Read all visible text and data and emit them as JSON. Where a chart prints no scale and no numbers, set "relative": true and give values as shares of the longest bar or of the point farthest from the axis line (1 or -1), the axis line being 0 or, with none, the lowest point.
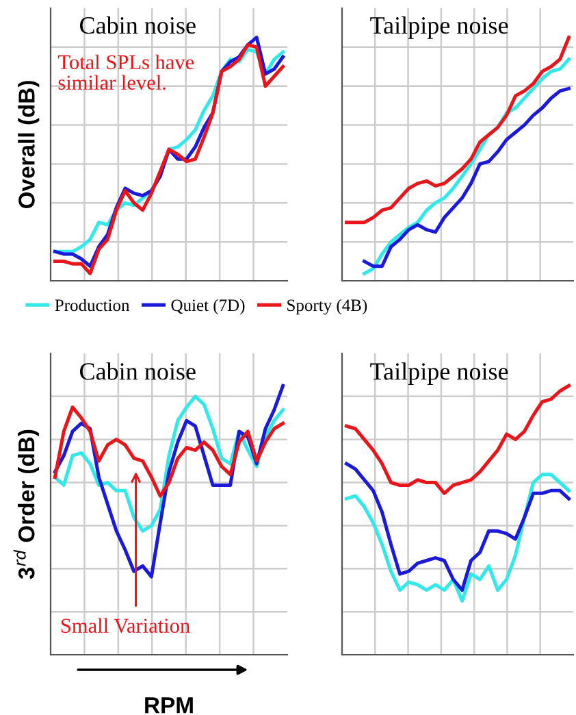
{
  "chart_data": [
    {
      "type": "line",
      "relative": true,
      "title": "Cabin noise",
      "ylabel": "Overall (dB)",
      "grid": true,
      "tick_labels": false,
      "legend": "bottom",
      "annotations": [
        "Total SPLs have\nsimilar level."
      ],
      "categories": [
        null,
        null,
        null,
        null,
        null,
        null,
        null,
        null,
        null,
        null,
        null,
        null,
        null,
        null,
        null,
        null,
        null,
        null,
        null,
        null,
        null,
        null,
        null,
        null,
        null,
        null,
        null
      ],
      "series": [
        {
          "name": "Production",
          "color": "#33e8e8",
          "values": [
            0.12,
            0.12,
            0.12,
            0.14,
            0.17,
            0.24,
            0.23,
            0.29,
            0.32,
            0.31,
            0.34,
            0.37,
            0.43,
            0.54,
            0.55,
            0.58,
            0.62,
            0.7,
            0.76,
            0.86,
            0.91,
            0.9,
            0.95,
            0.94,
            0.85,
            0.91,
            0.94
          ]
        },
        {
          "name": "Quiet (7D)",
          "color": "#1a1ad8",
          "values": [
            0.12,
            0.11,
            0.11,
            0.09,
            0.06,
            0.14,
            0.19,
            0.3,
            0.38,
            0.36,
            0.35,
            0.37,
            0.43,
            0.54,
            0.5,
            0.5,
            0.55,
            0.63,
            0.69,
            0.86,
            0.9,
            0.92,
            0.97,
            1.0,
            0.85,
            0.87,
            0.92
          ]
        },
        {
          "name": "Sporty (4B)",
          "color": "#e8161b",
          "values": [
            0.08,
            0.08,
            0.07,
            0.07,
            0.03,
            0.13,
            0.17,
            0.29,
            0.37,
            0.32,
            0.29,
            0.36,
            0.45,
            0.54,
            0.52,
            0.49,
            0.5,
            0.59,
            0.69,
            0.86,
            0.88,
            0.91,
            0.97,
            0.96,
            0.8,
            0.84,
            0.88
          ]
        }
      ]
    },
    {
      "type": "line",
      "relative": true,
      "title": "Tailpipe noise",
      "grid": true,
      "tick_labels": false,
      "categories": [
        null,
        null,
        null,
        null,
        null,
        null,
        null,
        null,
        null,
        null,
        null,
        null,
        null,
        null,
        null,
        null,
        null,
        null,
        null,
        null,
        null,
        null,
        null,
        null,
        null,
        null
      ],
      "series": [
        {
          "color": "#33e8e8",
          "values": [
            null,
            null,
            0.03,
            0.05,
            0.11,
            0.16,
            0.19,
            0.22,
            0.24,
            0.29,
            0.32,
            0.34,
            0.38,
            0.43,
            0.48,
            0.54,
            0.6,
            0.63,
            0.69,
            0.71,
            0.75,
            0.79,
            0.83,
            0.86,
            0.87,
            0.91
          ]
        },
        {
          "color": "#1a1ad8",
          "values": [
            null,
            null,
            0.08,
            0.06,
            0.06,
            0.14,
            0.17,
            0.21,
            0.23,
            0.21,
            0.2,
            0.26,
            0.3,
            0.34,
            0.4,
            0.48,
            0.49,
            0.53,
            0.58,
            0.61,
            0.64,
            0.68,
            0.71,
            0.75,
            0.78,
            0.79
          ]
        },
        {
          "color": "#e8161b",
          "values": [
            0.24,
            0.24,
            0.24,
            0.26,
            0.29,
            0.3,
            0.34,
            0.38,
            0.4,
            0.41,
            0.39,
            0.4,
            0.43,
            0.46,
            0.5,
            0.57,
            0.6,
            0.63,
            0.68,
            0.76,
            0.78,
            0.81,
            0.86,
            0.88,
            0.91,
            1.0
          ]
        }
      ]
    },
    {
      "type": "line",
      "relative": true,
      "title": "Cabin noise",
      "ylabel": "3$^{rd}$ Order (dB)",
      "xlabel": "RPM",
      "grid": true,
      "tick_labels": false,
      "annotations": [
        "Small Variation"
      ],
      "categories": [
        null,
        null,
        null,
        null,
        null,
        null,
        null,
        null,
        null,
        null,
        null,
        null,
        null,
        null,
        null,
        null,
        null,
        null,
        null,
        null,
        null,
        null,
        null,
        null,
        null,
        null,
        null
      ],
      "series": [
        {
          "color": "#33e8e8",
          "values": [
            0.66,
            0.63,
            0.74,
            0.75,
            0.71,
            0.63,
            0.64,
            0.61,
            0.61,
            0.51,
            0.46,
            0.48,
            0.54,
            0.74,
            0.87,
            0.92,
            0.96,
            0.93,
            0.84,
            0.73,
            0.71,
            0.83,
            0.76,
            0.7,
            0.81,
            0.87,
            0.91
          ]
        },
        {
          "color": "#1a1ad8",
          "values": [
            0.68,
            0.74,
            0.83,
            0.86,
            0.84,
            0.66,
            0.56,
            0.46,
            0.39,
            0.31,
            0.33,
            0.29,
            0.49,
            0.68,
            0.79,
            0.87,
            0.85,
            0.74,
            0.63,
            0.63,
            0.63,
            0.83,
            0.81,
            0.71,
            0.84,
            0.91,
            1.0
          ]
        },
        {
          "color": "#e8161b",
          "values": [
            0.66,
            0.83,
            0.92,
            0.88,
            0.83,
            0.72,
            0.78,
            0.8,
            0.78,
            0.73,
            0.72,
            0.66,
            0.59,
            0.64,
            0.73,
            0.77,
            0.76,
            0.79,
            0.76,
            0.7,
            0.67,
            0.79,
            0.83,
            0.72,
            0.79,
            0.84,
            0.86
          ]
        }
      ]
    },
    {
      "type": "line",
      "relative": true,
      "title": "Tailpipe noise",
      "grid": true,
      "tick_labels": false,
      "categories": [
        null,
        null,
        null,
        null,
        null,
        null,
        null,
        null,
        null,
        null,
        null,
        null,
        null,
        null,
        null,
        null,
        null,
        null,
        null,
        null,
        null,
        null,
        null,
        null,
        null,
        null
      ],
      "series": [
        {
          "color": "#33e8e8",
          "values": [
            0.58,
            0.59,
            0.55,
            0.49,
            0.41,
            0.31,
            0.24,
            0.27,
            0.26,
            0.24,
            0.26,
            0.24,
            0.28,
            0.2,
            0.3,
            0.28,
            0.33,
            0.24,
            0.28,
            0.37,
            0.51,
            0.64,
            0.67,
            0.67,
            0.64,
            0.61
          ]
        },
        {
          "color": "#1a1ad8",
          "values": [
            0.71,
            0.69,
            0.65,
            0.61,
            0.53,
            0.41,
            0.3,
            0.31,
            0.34,
            0.35,
            0.36,
            0.35,
            0.28,
            0.24,
            0.35,
            0.38,
            0.46,
            0.46,
            0.45,
            0.43,
            0.51,
            0.6,
            0.6,
            0.61,
            0.61,
            0.58
          ]
        },
        {
          "color": "#e8161b",
          "values": [
            0.85,
            0.84,
            0.8,
            0.76,
            0.71,
            0.64,
            0.63,
            0.63,
            0.65,
            0.64,
            0.64,
            0.6,
            0.63,
            0.64,
            0.65,
            0.68,
            0.72,
            0.76,
            0.82,
            0.8,
            0.83,
            0.89,
            0.94,
            0.95,
            0.98,
            1.0
          ]
        }
      ]
    }
  ]
}
